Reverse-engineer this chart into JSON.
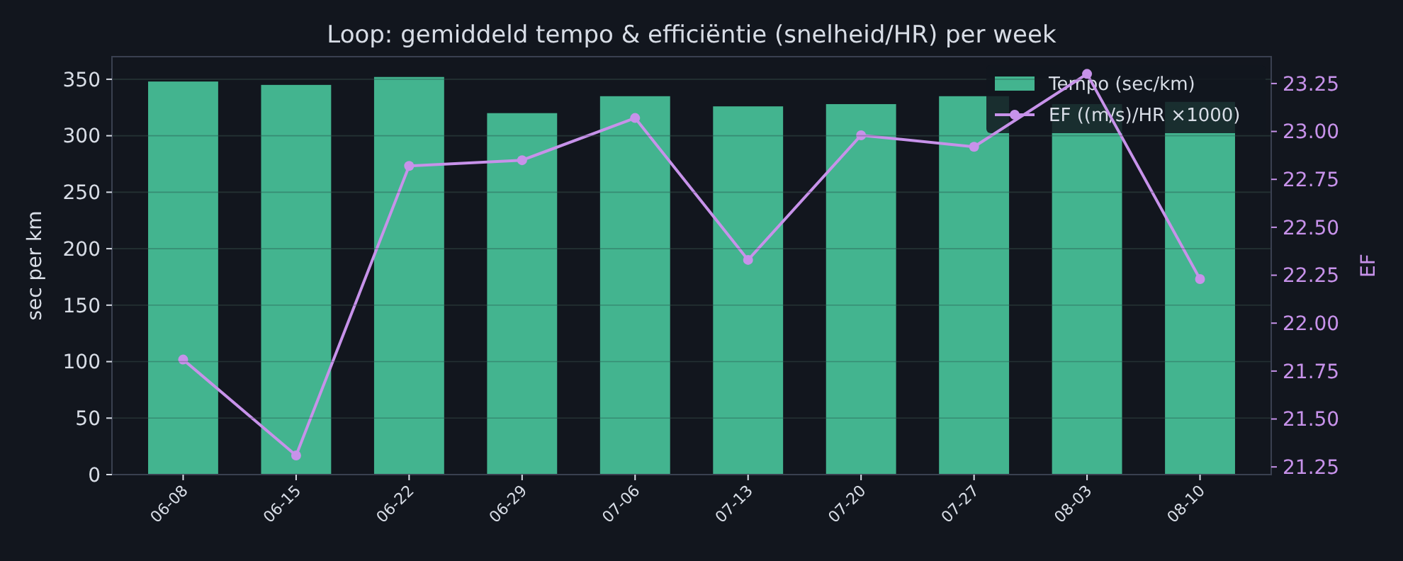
{
  "chart_data": {
    "type": "bar",
    "title": "Loop: gemiddeld tempo & efficiëntie (snelheid/HR) per week",
    "ylabel": "sec per km",
    "y2label": "EF",
    "categories": [
      "06-08",
      "06-15",
      "06-22",
      "06-29",
      "07-06",
      "07-13",
      "07-20",
      "07-27",
      "08-03",
      "08-10"
    ],
    "series": [
      {
        "name": "Tempo (sec/km)",
        "color": "#43b48f",
        "values": [
          348,
          345,
          352,
          320,
          335,
          326,
          328,
          335,
          328,
          330
        ]
      },
      {
        "name": "EF ((m/s)/HR ×1000)",
        "type": "line",
        "axis": "y2",
        "color": "#c792ea",
        "marker": "circle",
        "values": [
          21.81,
          21.31,
          22.82,
          22.85,
          23.07,
          22.33,
          22.98,
          22.92,
          23.3,
          22.23
        ]
      }
    ],
    "ylim": [
      0,
      370
    ],
    "yticks": [
      0,
      50,
      100,
      150,
      200,
      250,
      300,
      350
    ],
    "y2lim": [
      21.21,
      23.39
    ],
    "y2ticks": [
      {
        "value": 21.25,
        "label": "21.25"
      },
      {
        "value": 21.5,
        "label": "21.50"
      },
      {
        "value": 21.75,
        "label": "21.75"
      },
      {
        "value": 22,
        "label": "22.00"
      },
      {
        "value": 22.25,
        "label": "22.25"
      },
      {
        "value": 22.5,
        "label": "22.50"
      },
      {
        "value": 22.75,
        "label": "22.75"
      },
      {
        "value": 23,
        "label": "23.00"
      },
      {
        "value": 23.25,
        "label": "23.25"
      }
    ],
    "grid": "y",
    "legend": "top right"
  }
}
